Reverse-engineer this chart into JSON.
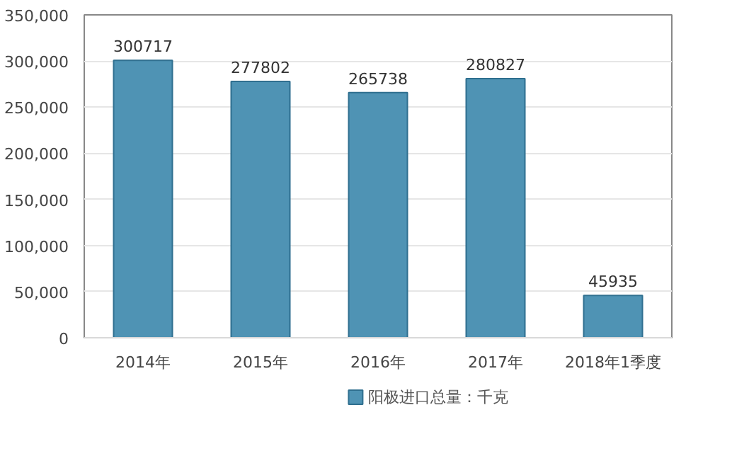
{
  "chart_data": {
    "type": "bar",
    "categories": [
      "2014年",
      "2015年",
      "2016年",
      "2017年",
      "2018年1季度"
    ],
    "series": [
      {
        "name": "阳极进口总量：千克",
        "color": "#4f93b4",
        "values": [
          300717,
          277802,
          265738,
          280827,
          45935
        ]
      }
    ],
    "ylim": [
      0,
      350000
    ],
    "yticks": [
      0,
      {
        "value": 50000,
        "label": "50,000"
      },
      {
        "value": 100000,
        "label": "100,000"
      },
      {
        "value": 150000,
        "label": "150,000"
      },
      {
        "value": 200000,
        "label": "200,000"
      },
      {
        "value": 250000,
        "label": "250,000"
      },
      {
        "value": 300000,
        "label": "300,000"
      },
      {
        "value": 350000,
        "label": "350,000"
      }
    ],
    "grid": "y",
    "legend": "bottom",
    "data_labels": true
  }
}
